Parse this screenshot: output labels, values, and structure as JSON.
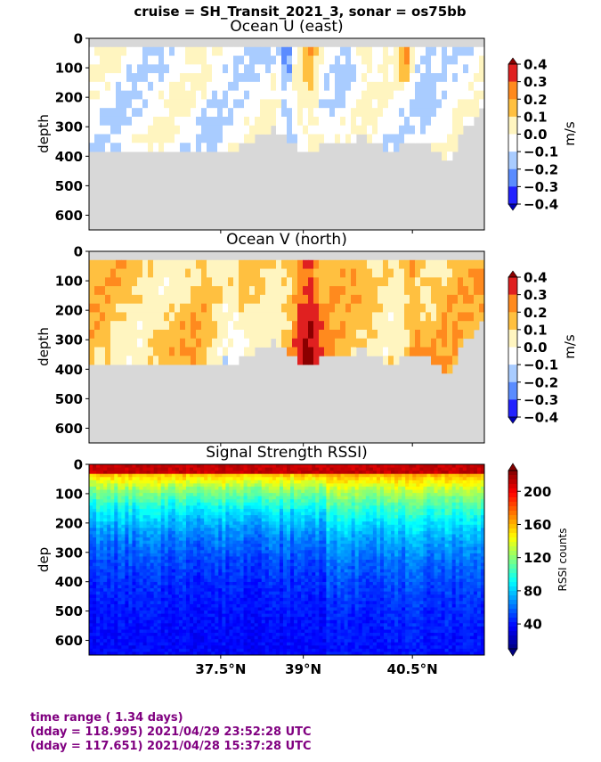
{
  "suptitle": "cruise = SH_Transit_2021_3,  sonar = os75bb",
  "chart_data": [
    {
      "type": "heatmap",
      "title": "Ocean U (east)",
      "ylabel": "depth",
      "yticks": [
        0,
        100,
        200,
        300,
        400,
        500,
        600
      ],
      "ylim": [
        650,
        0
      ],
      "colorbar": {
        "label": "m/s",
        "ticks": [
          "0.4",
          "0.3",
          "0.2",
          "0.1",
          "0.0",
          "−0.1",
          "−0.2",
          "−0.3",
          "−0.4"
        ],
        "range": [
          -0.4,
          0.4
        ]
      }
    },
    {
      "type": "heatmap",
      "title": "Ocean V (north)",
      "ylabel": "depth",
      "yticks": [
        0,
        100,
        200,
        300,
        400,
        500,
        600
      ],
      "ylim": [
        650,
        0
      ],
      "colorbar": {
        "label": "m/s",
        "ticks": [
          "0.4",
          "0.3",
          "0.2",
          "0.1",
          "0.0",
          "−0.1",
          "−0.2",
          "−0.3",
          "−0.4"
        ],
        "range": [
          -0.4,
          0.4
        ]
      }
    },
    {
      "type": "heatmap",
      "title": "Signal Strength RSSI)",
      "ylabel": "dep",
      "yticks": [
        0,
        100,
        200,
        300,
        400,
        500,
        600
      ],
      "ylim": [
        650,
        0
      ],
      "xticks": [
        "37.5°N",
        "39°N",
        "40.5°N"
      ],
      "colorbar": {
        "label": "RSSI counts",
        "ticks": [
          "200",
          "160",
          "120",
          "80",
          "40"
        ],
        "range": [
          10,
          225
        ]
      }
    }
  ],
  "footer": {
    "line1": "time range ( 1.34 days)",
    "line2": "(dday = 118.995) 2021/04/29 23:52:28 UTC",
    "line3": "(dday = 117.651) 2021/04/28 15:37:28 UTC"
  }
}
